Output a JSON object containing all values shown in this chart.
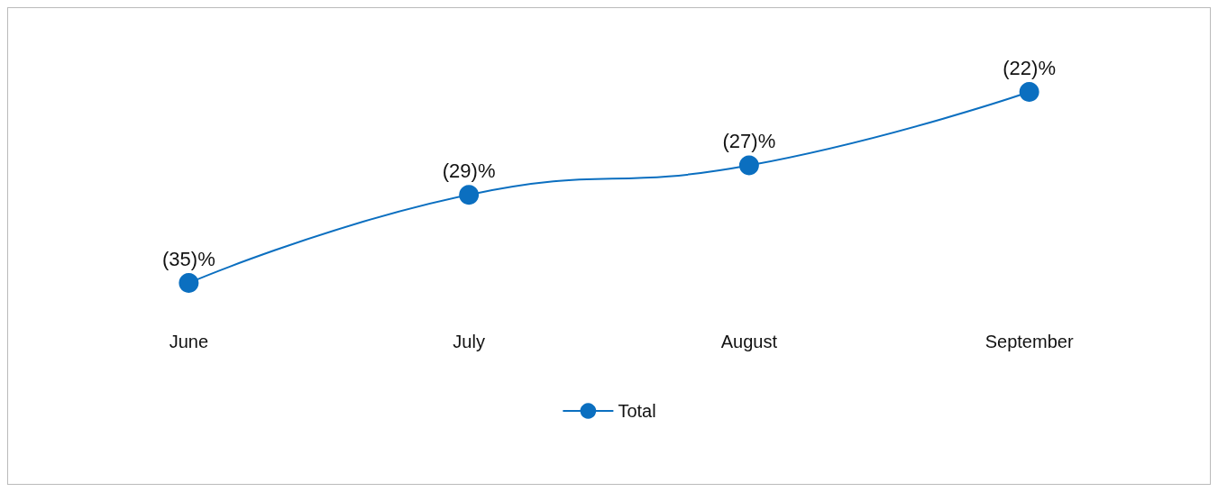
{
  "chart_data": {
    "type": "line",
    "categories": [
      "June",
      "July",
      "August",
      "September"
    ],
    "series": [
      {
        "name": "Total",
        "color": "#0b6fc0",
        "values": [
          -35,
          -29,
          -27,
          -22
        ],
        "value_labels": [
          "(35)%",
          "(29)%",
          "(27)%",
          "(22)%"
        ]
      }
    ],
    "legend": "bottom",
    "marker": "circle",
    "line_style": "solid",
    "grid": false
  }
}
